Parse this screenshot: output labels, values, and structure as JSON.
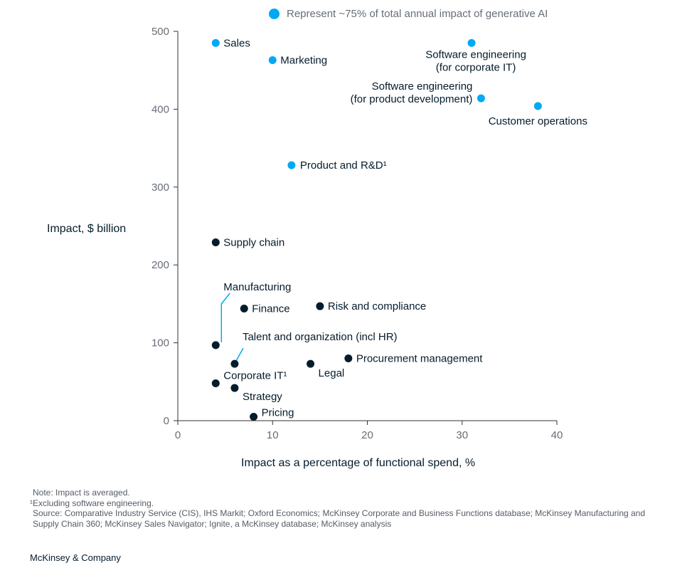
{
  "chart_data": {
    "type": "scatter",
    "xlabel": "Impact as a percentage of functional spend, %",
    "ylabel": "Impact, $ billion",
    "xlim": [
      0,
      40
    ],
    "ylim": [
      0,
      500
    ],
    "x_ticks": [
      "0",
      "10",
      "20",
      "30",
      "40"
    ],
    "y_ticks": [
      "0",
      "100",
      "200",
      "300",
      "400",
      "500"
    ],
    "grid": false,
    "legend": {
      "label": "Represent ~75% of total annual impact of generative AI",
      "color": "#00a9f4",
      "position": "top"
    },
    "series": [
      {
        "name": "Represent ~75% of total annual impact of generative AI",
        "color": "#00a9f4",
        "points": [
          {
            "label": "Sales",
            "x": 4,
            "y": 485
          },
          {
            "label": "Marketing",
            "x": 10,
            "y": 463
          },
          {
            "label": "Software engineering\n(for corporate IT)",
            "x": 31,
            "y": 485
          },
          {
            "label": "Software engineering\n(for product development)",
            "x": 32,
            "y": 414
          },
          {
            "label": "Customer operations",
            "x": 38,
            "y": 404
          },
          {
            "label": "Product and R&D¹",
            "x": 12,
            "y": 328
          }
        ]
      },
      {
        "color": "#051c2c",
        "points": [
          {
            "label": "Supply chain",
            "x": 4,
            "y": 229
          },
          {
            "label": "Manufacturing",
            "x": 4,
            "y": 97
          },
          {
            "label": "Finance",
            "x": 7,
            "y": 144
          },
          {
            "label": "Risk and compliance",
            "x": 15,
            "y": 147
          },
          {
            "label": "Talent and organization (incl HR)",
            "x": 6,
            "y": 73
          },
          {
            "label": "Procurement management",
            "x": 18,
            "y": 80
          },
          {
            "label": "Legal",
            "x": 14,
            "y": 73
          },
          {
            "label": "Corporate IT¹",
            "x": 4,
            "y": 48
          },
          {
            "label": "Strategy",
            "x": 6,
            "y": 42
          },
          {
            "label": "Pricing",
            "x": 8,
            "y": 5
          }
        ]
      }
    ]
  },
  "notes": {
    "note": "Note: Impact is averaged.",
    "footnote": "¹Excluding software engineering.",
    "source": "Source: Comparative Industry Service (CIS), IHS Markit; Oxford Economics; McKinsey Corporate and Business Functions database; McKinsey Manufacturing and Supply Chain 360; McKinsey Sales Navigator; Ignite, a McKinsey database; McKinsey analysis"
  },
  "brand": "McKinsey & Company"
}
